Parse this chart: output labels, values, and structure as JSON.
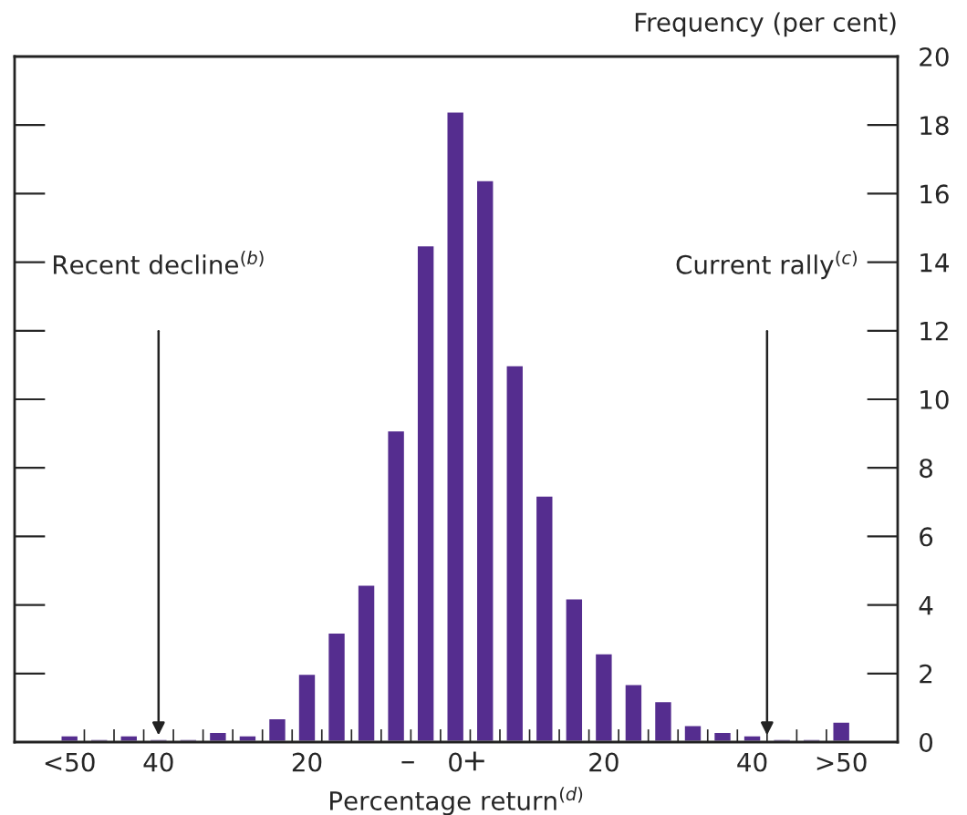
{
  "chart_data": {
    "type": "bar",
    "ylabel": "Frequency (per cent)",
    "xlabel": "Percentage return$^{(d)}$",
    "categories": [
      "<50",
      null,
      null,
      "40",
      null,
      null,
      null,
      null,
      "20",
      null,
      null,
      null,
      null,
      "0",
      null,
      null,
      null,
      null,
      "20",
      null,
      null,
      null,
      null,
      "40",
      null,
      null,
      ">50"
    ],
    "values": [
      0.2,
      0.1,
      0.2,
      0.1,
      0.1,
      0.3,
      0.2,
      0.7,
      2.0,
      3.2,
      4.6,
      9.1,
      14.5,
      18.4,
      16.4,
      11.0,
      7.2,
      4.2,
      2.6,
      1.7,
      1.2,
      0.5,
      0.3,
      0.2,
      0.1,
      0.1,
      0.6
    ],
    "color": "#552d8f",
    "ylim": [
      0,
      20
    ],
    "yticks": [
      0,
      2,
      4,
      6,
      8,
      10,
      12,
      14,
      16,
      18,
      20
    ],
    "annotations": [
      "Recent decline$^{(b)}$",
      "Current rally$^{(c)}$",
      "–",
      "+"
    ],
    "grid": false
  }
}
